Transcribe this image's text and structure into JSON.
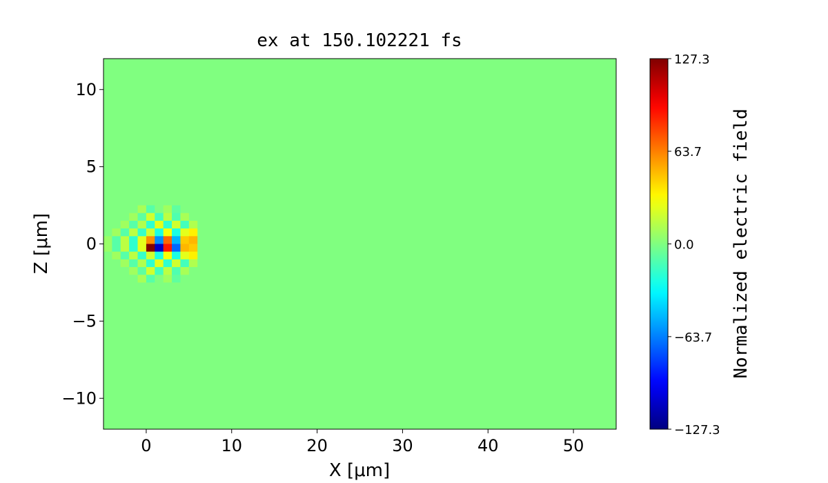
{
  "chart_data": {
    "type": "heatmap",
    "title": "ex at 150.102221 fs",
    "x_label": "X [μm]",
    "y_label": "Z [μm]",
    "colorbar_label": "Normalized electric field",
    "colormap": "jet",
    "xlim": [
      -5,
      55
    ],
    "ylim": [
      -12,
      12
    ],
    "xticks": [
      0,
      10,
      20,
      30,
      40,
      50
    ],
    "yticks": [
      {
        "value": -10,
        "label": "−10"
      },
      {
        "value": -5,
        "label": "−5"
      },
      0,
      5,
      10
    ],
    "clim": [
      -127.3,
      127.3
    ],
    "cticks": [
      {
        "value": -127.3,
        "label": "−127.3"
      },
      {
        "value": -63.7,
        "label": "−63.7"
      },
      {
        "value": 0,
        "label": "0.0"
      },
      63.7,
      127.3
    ],
    "x": [
      -4.5,
      -3.5,
      -2.5,
      -1.5,
      -0.5,
      0.5,
      1.5,
      2.5,
      3.5,
      4.5,
      5.5,
      6.5
    ],
    "y": [
      2.75,
      2.25,
      1.75,
      1.25,
      0.75,
      0.25,
      -0.25,
      -0.75,
      -1.25,
      -1.75,
      -2.25,
      -2.75
    ],
    "values": [
      [
        0,
        0,
        0,
        0,
        0,
        0,
        0,
        0,
        0,
        0,
        0,
        0
      ],
      [
        0,
        0,
        0,
        0,
        10,
        -10,
        0,
        8,
        -8,
        0,
        0,
        0
      ],
      [
        0,
        0,
        0,
        8,
        -8,
        20,
        -15,
        15,
        -12,
        10,
        0,
        0
      ],
      [
        0,
        0,
        8,
        -10,
        12,
        -20,
        25,
        -20,
        20,
        -15,
        12,
        0
      ],
      [
        0,
        8,
        -10,
        15,
        -18,
        20,
        -25,
        30,
        -25,
        25,
        35,
        0
      ],
      [
        6,
        -10,
        15,
        -20,
        25,
        60,
        -60,
        70,
        -50,
        45,
        50,
        0
      ],
      [
        6,
        -10,
        15,
        -20,
        25,
        127,
        -110,
        90,
        -70,
        50,
        45,
        0
      ],
      [
        0,
        8,
        -10,
        15,
        -18,
        20,
        -25,
        30,
        -25,
        25,
        35,
        0
      ],
      [
        0,
        0,
        8,
        -10,
        12,
        -20,
        25,
        -20,
        20,
        -15,
        12,
        0
      ],
      [
        0,
        0,
        0,
        8,
        -8,
        20,
        -15,
        15,
        -12,
        10,
        0,
        0
      ],
      [
        0,
        0,
        0,
        0,
        10,
        -10,
        0,
        8,
        -8,
        0,
        0,
        0
      ],
      [
        0,
        0,
        0,
        0,
        0,
        0,
        0,
        0,
        0,
        0,
        0,
        0
      ]
    ]
  }
}
